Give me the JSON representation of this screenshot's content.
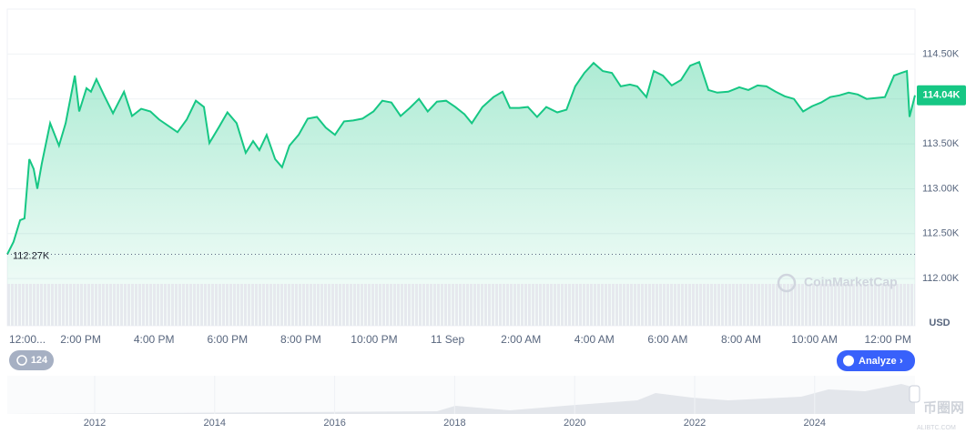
{
  "chart_data": {
    "type": "line",
    "color": "#16c784",
    "x": [
      0,
      0.17,
      0.35,
      0.47,
      0.6,
      0.72,
      0.82,
      0.94,
      1.17,
      1.41,
      1.59,
      1.84,
      1.96,
      2.16,
      2.28,
      2.43,
      2.65,
      2.88,
      3.18,
      3.4,
      3.65,
      3.9,
      4.14,
      4.39,
      4.64,
      4.89,
      5.14,
      5.36,
      5.51,
      5.76,
      6.0,
      6.25,
      6.5,
      6.7,
      6.87,
      7.07,
      7.3,
      7.49,
      7.69,
      7.94,
      8.19,
      8.44,
      8.68,
      8.93,
      9.18,
      9.43,
      9.68,
      9.98,
      10.22,
      10.47,
      10.72,
      10.97,
      11.22,
      11.46,
      11.71,
      11.96,
      12.21,
      12.46,
      12.66,
      12.95,
      13.25,
      13.5,
      13.7,
      13.95,
      14.19,
      14.44,
      14.69,
      14.99,
      15.24,
      15.48,
      15.73,
      15.98,
      16.23,
      16.48,
      16.72,
      16.97,
      17.17,
      17.42,
      17.62,
      17.87,
      18.11,
      18.36,
      18.61,
      18.86,
      19.11,
      19.35,
      19.65,
      19.95,
      20.2,
      20.45,
      20.69,
      20.94,
      21.19,
      21.44,
      21.69,
      21.94,
      22.18,
      22.43,
      22.68,
      22.93,
      23.18,
      23.42,
      23.67,
      23.92,
      24.17,
      24.37,
      24.52,
      24.59,
      24.74
    ],
    "values": [
      112270,
      112410,
      112650,
      112670,
      113330,
      113220,
      113000,
      113280,
      113730,
      113480,
      113730,
      114260,
      113860,
      114120,
      114080,
      114220,
      114030,
      113840,
      114080,
      113810,
      113890,
      113860,
      113770,
      113700,
      113630,
      113770,
      113980,
      113910,
      113510,
      113680,
      113850,
      113730,
      113400,
      113530,
      113430,
      113600,
      113330,
      113240,
      113480,
      113600,
      113780,
      113800,
      113680,
      113600,
      113750,
      113760,
      113780,
      113860,
      113980,
      113960,
      113810,
      113900,
      114000,
      113860,
      113970,
      113980,
      113910,
      113830,
      113730,
      113910,
      114020,
      114080,
      113900,
      113900,
      113910,
      113800,
      113910,
      113850,
      113880,
      114140,
      114290,
      114400,
      114310,
      114290,
      114140,
      114160,
      114140,
      114020,
      114310,
      114260,
      114150,
      114210,
      114370,
      114410,
      114100,
      114070,
      114080,
      114130,
      114100,
      114150,
      114140,
      114080,
      114030,
      114000,
      113860,
      113920,
      113960,
      114020,
      114040,
      114070,
      114050,
      114000,
      114010,
      114020,
      114260,
      114290,
      114310,
      113800,
      114040
    ],
    "xlim": [
      0,
      24.74
    ],
    "xticks": [
      {
        "value": 0,
        "label": "12:00..."
      },
      {
        "value": 2,
        "label": "2:00 PM"
      },
      {
        "value": 4,
        "label": "4:00 PM"
      },
      {
        "value": 6,
        "label": "6:00 PM"
      },
      {
        "value": 8,
        "label": "8:00 PM"
      },
      {
        "value": 10,
        "label": "10:00 PM"
      },
      {
        "value": 12,
        "label": "11 Sep"
      },
      {
        "value": 14,
        "label": "2:00 AM"
      },
      {
        "value": 16,
        "label": "4:00 AM"
      },
      {
        "value": 18,
        "label": "6:00 AM"
      },
      {
        "value": 20,
        "label": "8:00 AM"
      },
      {
        "value": 22,
        "label": "10:00 AM"
      },
      {
        "value": 24,
        "label": "12:00 PM"
      }
    ],
    "ylim": [
      111475,
      115000
    ],
    "yticks": [
      {
        "value": 112000,
        "label": "112.00K"
      },
      {
        "value": 112500,
        "label": "112.50K"
      },
      {
        "value": 113000,
        "label": "113.00K"
      },
      {
        "value": 113500,
        "label": "113.50K"
      },
      {
        "value": 114000,
        "label": "114.00K"
      },
      {
        "value": 114500,
        "label": "114.50K"
      }
    ],
    "grid": true,
    "y_unit": "USD",
    "reference_line": {
      "value": 112270,
      "label": "112.27K"
    },
    "last_price": {
      "value": 114040,
      "label": "114.04K"
    }
  },
  "ui": {
    "watermark": "CoinMarketCap",
    "history_count": "124",
    "analyze": "Analyze",
    "navigator_years": [
      "2012",
      "2014",
      "2016",
      "2018",
      "2020",
      "2022",
      "2024"
    ],
    "site": "币圈网",
    "site_url": "ALIBTC.COM"
  }
}
